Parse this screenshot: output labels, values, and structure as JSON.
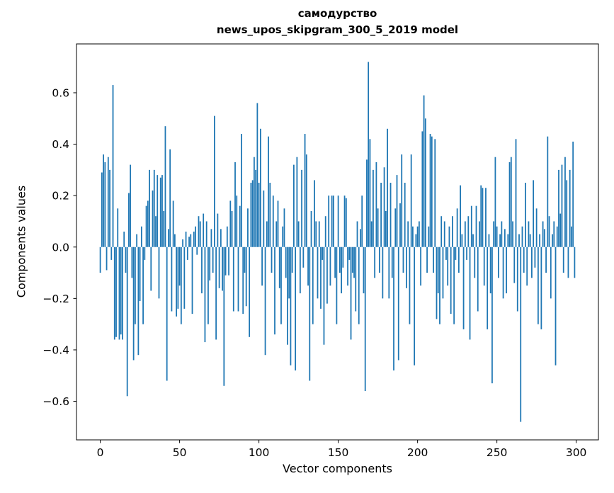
{
  "chart_data": {
    "type": "bar",
    "title": "самодурство",
    "subtitle": "news_upos_skipgram_300_5_2019 model",
    "xlabel": "Vector components",
    "ylabel": "Components values",
    "bar_color": "#1f77b4",
    "grid": false,
    "legend": "none",
    "xlim": [
      -15,
      314
    ],
    "ylim": [
      -0.75,
      0.79
    ],
    "x_ticks": [
      0,
      50,
      100,
      150,
      200,
      250,
      300
    ],
    "x_tick_labels": [
      "0",
      "50",
      "100",
      "150",
      "200",
      "250",
      "300"
    ],
    "y_ticks": [
      -0.6,
      -0.4,
      -0.2,
      0.0,
      0.2,
      0.4,
      0.6
    ],
    "y_tick_labels": [
      "−0.6",
      "−0.4",
      "−0.2",
      "0.0",
      "0.2",
      "0.4",
      "0.6"
    ],
    "values": [
      -0.1,
      0.29,
      0.36,
      0.33,
      -0.09,
      0.35,
      0.3,
      -0.05,
      0.63,
      -0.36,
      -0.35,
      0.15,
      -0.36,
      -0.34,
      -0.36,
      0.06,
      -0.1,
      -0.58,
      0.21,
      0.32,
      -0.12,
      -0.44,
      -0.3,
      0.05,
      -0.42,
      -0.21,
      0.08,
      -0.3,
      -0.05,
      0.16,
      0.18,
      0.3,
      -0.17,
      0.22,
      0.3,
      0.12,
      0.28,
      -0.2,
      0.27,
      0.28,
      0.14,
      0.47,
      -0.52,
      0.07,
      0.38,
      -0.25,
      0.18,
      0.05,
      -0.27,
      -0.24,
      -0.15,
      -0.3,
      0.03,
      -0.24,
      0.06,
      -0.05,
      0.04,
      0.05,
      -0.26,
      0.06,
      0.08,
      -0.03,
      0.12,
      0.1,
      -0.18,
      0.13,
      -0.37,
      0.1,
      -0.3,
      -0.13,
      0.07,
      -0.1,
      0.51,
      -0.36,
      0.13,
      -0.16,
      0.07,
      -0.17,
      -0.54,
      -0.11,
      0.08,
      -0.11,
      0.18,
      0.14,
      -0.25,
      0.33,
      0.2,
      -0.25,
      0.16,
      0.44,
      -0.26,
      -0.1,
      -0.23,
      0.15,
      -0.35,
      0.25,
      0.26,
      0.35,
      0.3,
      0.56,
      0.25,
      0.46,
      -0.15,
      0.22,
      -0.42,
      0.1,
      0.43,
      0.25,
      -0.1,
      0.2,
      -0.34,
      0.1,
      0.18,
      -0.16,
      -0.3,
      0.08,
      0.15,
      -0.12,
      -0.38,
      -0.2,
      -0.46,
      -0.1,
      0.32,
      -0.48,
      0.35,
      0.1,
      -0.18,
      0.3,
      -0.08,
      0.44,
      0.36,
      -0.15,
      -0.52,
      0.14,
      -0.3,
      0.26,
      0.1,
      -0.2,
      0.1,
      -0.24,
      -0.05,
      -0.38,
      0.12,
      -0.22,
      0.2,
      -0.15,
      0.2,
      0.2,
      -0.12,
      -0.3,
      0.2,
      -0.1,
      -0.18,
      -0.08,
      0.2,
      0.19,
      -0.15,
      -0.05,
      -0.36,
      -0.1,
      -0.12,
      -0.25,
      0.1,
      -0.3,
      0.07,
      0.2,
      -0.18,
      -0.56,
      0.34,
      0.72,
      0.42,
      0.1,
      0.3,
      -0.12,
      0.33,
      0.15,
      -0.1,
      0.25,
      -0.2,
      0.31,
      0.14,
      0.46,
      -0.2,
      0.25,
      -0.12,
      -0.48,
      0.15,
      0.28,
      -0.44,
      0.17,
      0.36,
      -0.1,
      0.25,
      -0.16,
      0.1,
      -0.3,
      0.36,
      0.08,
      -0.46,
      0.05,
      0.08,
      0.1,
      -0.15,
      0.45,
      0.59,
      0.5,
      -0.1,
      0.08,
      0.44,
      0.43,
      -0.1,
      0.42,
      -0.28,
      -0.18,
      -0.3,
      0.12,
      -0.2,
      0.1,
      -0.05,
      -0.15,
      0.08,
      -0.26,
      0.12,
      -0.3,
      -0.05,
      0.15,
      -0.1,
      0.24,
      0.05,
      -0.32,
      0.1,
      -0.05,
      0.12,
      -0.36,
      0.16,
      0.05,
      -0.12,
      0.16,
      -0.25,
      0.1,
      0.24,
      0.23,
      -0.15,
      0.23,
      -0.32,
      0.05,
      -0.18,
      -0.53,
      0.1,
      0.35,
      0.08,
      -0.12,
      0.05,
      0.1,
      -0.2,
      0.07,
      -0.18,
      0.05,
      0.33,
      0.35,
      0.1,
      -0.14,
      0.42,
      -0.25,
      0.05,
      -0.68,
      0.08,
      -0.1,
      0.25,
      -0.15,
      0.1,
      0.05,
      -0.12,
      0.26,
      -0.08,
      0.15,
      -0.3,
      0.05,
      -0.32,
      0.1,
      0.07,
      -0.1,
      0.43,
      0.12,
      -0.2,
      0.05,
      0.1,
      -0.46,
      0.08,
      0.3,
      0.13,
      0.32,
      -0.1,
      0.35,
      0.26,
      -0.12,
      0.3,
      0.08,
      0.41,
      -0.12
    ]
  }
}
